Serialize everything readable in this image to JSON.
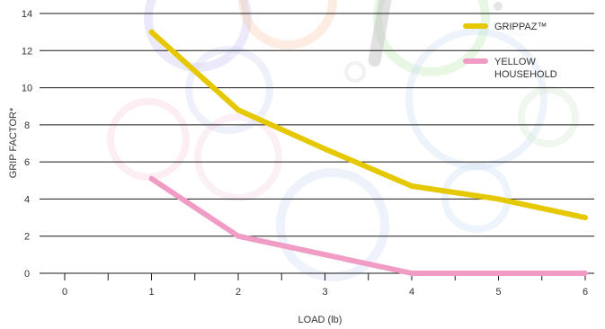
{
  "chart_data": {
    "type": "line",
    "xlabel": "LOAD (lb)",
    "ylabel": "GRIP FACTOR*",
    "xlim": [
      0,
      6
    ],
    "ylim": [
      0,
      14
    ],
    "x_ticks": [
      0,
      1,
      2,
      3,
      4,
      5,
      6
    ],
    "y_ticks": [
      0,
      2,
      4,
      6,
      8,
      10,
      12,
      14
    ],
    "grid": "horizontal",
    "legend_position": "top-right",
    "series": [
      {
        "name": "GRIPPAZ™",
        "name_lines": [
          "GRIPPAZ™"
        ],
        "color": "#e6c800",
        "x": [
          1,
          2,
          3,
          4,
          5,
          6
        ],
        "values": [
          13,
          8.8,
          6.7,
          4.7,
          4.0,
          3.0
        ]
      },
      {
        "name": "YELLOW HOUSEHOLD",
        "name_lines": [
          "YELLOW",
          "HOUSEHOLD"
        ],
        "color": "#f09cc4",
        "x": [
          1,
          2,
          3,
          4,
          5,
          6
        ],
        "values": [
          5.1,
          2.0,
          1.0,
          0,
          0,
          0
        ]
      }
    ]
  }
}
